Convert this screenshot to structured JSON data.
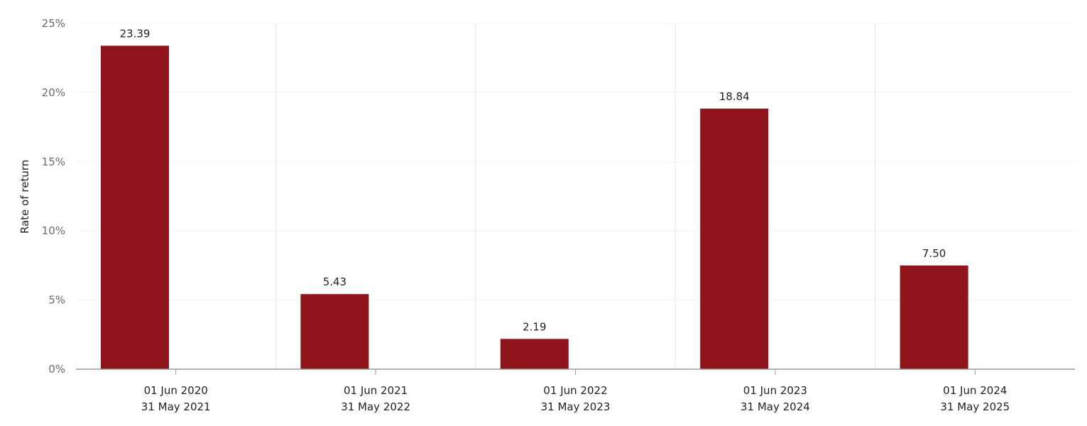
{
  "chart_data": {
    "type": "bar",
    "title": "",
    "ylabel": "Rate of return",
    "xlabel": "",
    "ylim": [
      0,
      25
    ],
    "yticks": [
      0,
      5,
      10,
      15,
      20,
      25
    ],
    "ytick_labels": [
      "0%",
      "5%",
      "10%",
      "15%",
      "20%",
      "25%"
    ],
    "categories": [
      [
        "01 Jun 2020",
        "31 May 2021"
      ],
      [
        "01 Jun 2021",
        "31 May 2022"
      ],
      [
        "01 Jun 2022",
        "31 May 2023"
      ],
      [
        "01 Jun 2023",
        "31 May 2024"
      ],
      [
        "01 Jun 2024",
        "31 May 2025"
      ]
    ],
    "values": [
      23.39,
      5.43,
      2.19,
      18.84,
      7.5
    ],
    "data_labels": [
      "23.39",
      "5.43",
      "2.19",
      "18.84",
      "7.50"
    ],
    "grid": true,
    "colors": {
      "bar": "#8f151a",
      "grid": "#e6e6e6",
      "axis": "#999999"
    }
  }
}
